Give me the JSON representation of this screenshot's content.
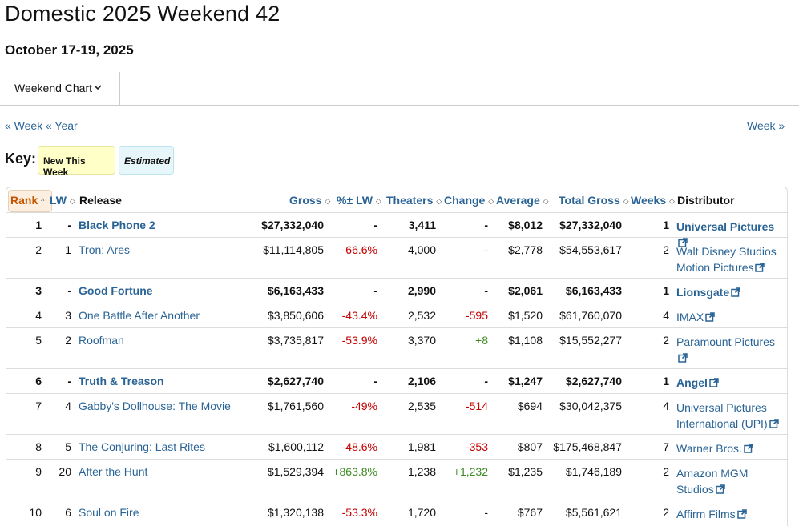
{
  "header": {
    "title": "Domestic 2025 Weekend 42",
    "subtitle": "October 17-19, 2025"
  },
  "tab": {
    "label": "Weekend Chart",
    "icon": "chevron-down-icon"
  },
  "nav": {
    "prev_week": "« Week",
    "prev_year": "« Year",
    "next_week": "Week »"
  },
  "key": {
    "label": "Key:",
    "new_this_week": "New This Week",
    "estimated": "Estimated"
  },
  "columns": {
    "rank": "Rank",
    "lw": "LW",
    "release": "Release",
    "gross": "Gross",
    "pct_lw": "%± LW",
    "theaters": "Theaters",
    "change": "Change",
    "average": "Average",
    "total_gross": "Total Gross",
    "weeks": "Weeks",
    "distributor": "Distributor"
  },
  "colors": {
    "link": "#2a6496",
    "negative": "#c40000",
    "positive": "#3a8a1f",
    "rank_header": "#c45500"
  },
  "rows": [
    {
      "rank": "1",
      "lw": "-",
      "release": "Black Phone 2",
      "gross": "$27,332,040",
      "pct_lw": "-",
      "theaters": "3,411",
      "change": "-",
      "average": "$8,012",
      "total_gross": "$27,332,040",
      "weeks": "1",
      "distributor": "Universal Pictures",
      "new": true
    },
    {
      "rank": "2",
      "lw": "1",
      "release": "Tron: Ares",
      "gross": "$11,114,805",
      "pct_lw": "-66.6%",
      "theaters": "4,000",
      "change": "-",
      "average": "$2,778",
      "total_gross": "$54,553,617",
      "weeks": "2",
      "distributor": "Walt Disney Studios Motion Pictures",
      "new": false
    },
    {
      "rank": "3",
      "lw": "-",
      "release": "Good Fortune",
      "gross": "$6,163,433",
      "pct_lw": "-",
      "theaters": "2,990",
      "change": "-",
      "average": "$2,061",
      "total_gross": "$6,163,433",
      "weeks": "1",
      "distributor": "Lionsgate",
      "new": true
    },
    {
      "rank": "4",
      "lw": "3",
      "release": "One Battle After Another",
      "gross": "$3,850,606",
      "pct_lw": "-43.4%",
      "theaters": "2,532",
      "change": "-595",
      "average": "$1,520",
      "total_gross": "$61,760,070",
      "weeks": "4",
      "distributor": "IMAX",
      "new": false
    },
    {
      "rank": "5",
      "lw": "2",
      "release": "Roofman",
      "gross": "$3,735,817",
      "pct_lw": "-53.9%",
      "theaters": "3,370",
      "change": "+8",
      "average": "$1,108",
      "total_gross": "$15,552,277",
      "weeks": "2",
      "distributor": "Paramount Pictures",
      "new": false
    },
    {
      "rank": "6",
      "lw": "-",
      "release": "Truth & Treason",
      "gross": "$2,627,740",
      "pct_lw": "-",
      "theaters": "2,106",
      "change": "-",
      "average": "$1,247",
      "total_gross": "$2,627,740",
      "weeks": "1",
      "distributor": "Angel",
      "new": true
    },
    {
      "rank": "7",
      "lw": "4",
      "release": "Gabby's Dollhouse: The Movie",
      "gross": "$1,761,560",
      "pct_lw": "-49%",
      "theaters": "2,535",
      "change": "-514",
      "average": "$694",
      "total_gross": "$30,042,375",
      "weeks": "4",
      "distributor": "Universal Pictures International (UPI)",
      "new": false
    },
    {
      "rank": "8",
      "lw": "5",
      "release": "The Conjuring: Last Rites",
      "gross": "$1,600,112",
      "pct_lw": "-48.6%",
      "theaters": "1,981",
      "change": "-353",
      "average": "$807",
      "total_gross": "$175,468,847",
      "weeks": "7",
      "distributor": "Warner Bros.",
      "new": false
    },
    {
      "rank": "9",
      "lw": "20",
      "release": "After the Hunt",
      "gross": "$1,529,394",
      "pct_lw": "+863.8%",
      "theaters": "1,238",
      "change": "+1,232",
      "average": "$1,235",
      "total_gross": "$1,746,189",
      "weeks": "2",
      "distributor": "Amazon MGM Studios",
      "new": false
    },
    {
      "rank": "10",
      "lw": "6",
      "release": "Soul on Fire",
      "gross": "$1,320,138",
      "pct_lw": "-53.3%",
      "theaters": "1,720",
      "change": "-",
      "average": "$767",
      "total_gross": "$5,561,621",
      "weeks": "2",
      "distributor": "Affirm Films",
      "new": false
    }
  ]
}
